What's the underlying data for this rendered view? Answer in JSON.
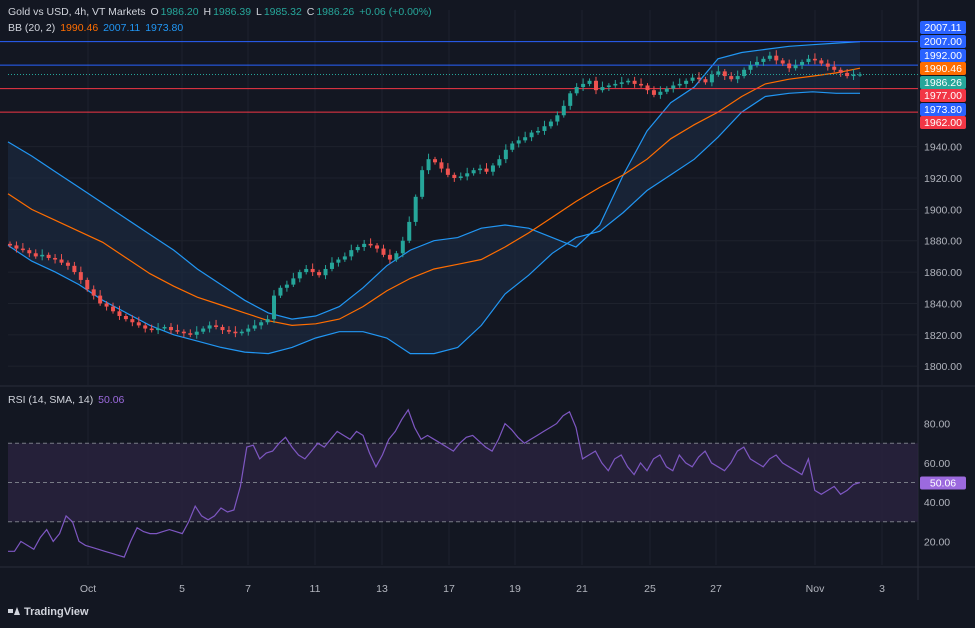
{
  "header": {
    "symbol": "Gold vs USD, 4h, VT Markets",
    "o_label": "O",
    "o": "1986.20",
    "h_label": "H",
    "h": "1986.39",
    "l_label": "L",
    "l": "1985.32",
    "c_label": "C",
    "c": "1986.26",
    "change": "+0.06 (+0.00%)",
    "bb_label": "BB (20, 2)",
    "bb_basis": "1990.46",
    "bb_upper": "2007.11",
    "bb_lower": "1973.80"
  },
  "rsi_header": {
    "label": "RSI (14, SMA, 14)",
    "value": "50.06"
  },
  "branding": "TradingView",
  "colors": {
    "background": "#131722",
    "grid": "#1e222d",
    "up": "#26a69a",
    "down": "#ef5350",
    "bb_band": "#2962ff",
    "bb_basis": "#ff6d00",
    "bb_fill": "#1b2a3e",
    "rsi_line": "#7e57c2",
    "rsi_fill": "#2a2340",
    "price_line_blue": "#2962ff",
    "price_line_red": "#f23645"
  },
  "chart_data": [
    {
      "type": "line",
      "title": "Gold vs USD, 4h, VT Markets",
      "x_ticks": [
        "Oct",
        "5",
        "7",
        "11",
        "13",
        "17",
        "19",
        "21",
        "25",
        "27",
        "Nov",
        "3"
      ],
      "y_ticks": [
        1800.0,
        1820.0,
        1840.0,
        1860.0,
        1880.0,
        1900.0,
        1920.0,
        1940.0
      ],
      "ylim": [
        1788,
        2008
      ],
      "series": [
        {
          "name": "Close (approx.)",
          "values": [
            1877,
            1875,
            1874,
            1872,
            1870,
            1871,
            1869,
            1868,
            1866,
            1864,
            1860,
            1855,
            1849,
            1845,
            1840,
            1838,
            1835,
            1832,
            1830,
            1828,
            1826,
            1824,
            1823,
            1824,
            1825,
            1823,
            1822,
            1821,
            1820,
            1822,
            1824,
            1826,
            1825,
            1823,
            1822,
            1821,
            1822,
            1824,
            1826,
            1828,
            1830,
            1845,
            1850,
            1852,
            1856,
            1860,
            1862,
            1860,
            1858,
            1862,
            1866,
            1868,
            1870,
            1874,
            1876,
            1878,
            1877,
            1875,
            1871,
            1868,
            1872,
            1880,
            1892,
            1908,
            1925,
            1932,
            1930,
            1926,
            1922,
            1920,
            1921,
            1923,
            1925,
            1926,
            1924,
            1928,
            1932,
            1938,
            1942,
            1944,
            1946,
            1949,
            1950,
            1953,
            1956,
            1960,
            1966,
            1974,
            1978,
            1980,
            1982,
            1976,
            1978,
            1979,
            1980,
            1981,
            1982,
            1980,
            1979,
            1976,
            1973,
            1975,
            1977,
            1979,
            1980,
            1982,
            1984,
            1983,
            1981,
            1986,
            1988,
            1985,
            1983,
            1985,
            1989,
            1992,
            1994,
            1996,
            1998,
            1995,
            1993,
            1990,
            1992,
            1994,
            1996,
            1995,
            1993,
            1991,
            1989,
            1987,
            1985,
            1986,
            1986
          ]
        },
        {
          "name": "BB upper (approx.)",
          "values": [
            1943,
            1934,
            1924,
            1914,
            1904,
            1894,
            1884,
            1874,
            1862,
            1852,
            1842,
            1834,
            1830,
            1832,
            1838,
            1850,
            1864,
            1874,
            1880,
            1882,
            1888,
            1890,
            1888,
            1882,
            1876,
            1890,
            1922,
            1950,
            1968,
            1978,
            1996,
            2000,
            2002,
            2004,
            2005,
            2006,
            2007
          ]
        },
        {
          "name": "BB basis (approx.)",
          "values": [
            1910,
            1900,
            1893,
            1886,
            1879,
            1869,
            1859,
            1851,
            1844,
            1839,
            1834,
            1829,
            1826,
            1827,
            1830,
            1838,
            1848,
            1856,
            1862,
            1865,
            1868,
            1876,
            1885,
            1895,
            1905,
            1914,
            1922,
            1932,
            1945,
            1954,
            1962,
            1972,
            1980,
            1983,
            1985,
            1987,
            1990
          ]
        },
        {
          "name": "BB lower (approx.)",
          "values": [
            1877,
            1867,
            1860,
            1852,
            1842,
            1834,
            1826,
            1820,
            1816,
            1812,
            1809,
            1808,
            1812,
            1818,
            1822,
            1822,
            1818,
            1808,
            1808,
            1812,
            1826,
            1846,
            1858,
            1872,
            1882,
            1886,
            1898,
            1912,
            1922,
            1932,
            1946,
            1962,
            1972,
            1974,
            1975,
            1974,
            1974
          ]
        }
      ],
      "price_labels": [
        {
          "value": "2007.11",
          "color": "#2962ff"
        },
        {
          "value": "2007.00",
          "color": "#2962ff"
        },
        {
          "value": "1992.00",
          "color": "#2962ff"
        },
        {
          "value": "1990.46",
          "color": "#ff6d00"
        },
        {
          "value": "1986.26",
          "color": "#26a69a"
        },
        {
          "value": "1977.00",
          "color": "#f23645"
        },
        {
          "value": "1973.80",
          "color": "#2962ff"
        },
        {
          "value": "1962.00",
          "color": "#f23645"
        }
      ],
      "horizontal_levels": [
        {
          "value": 2007.0,
          "color": "#2962ff"
        },
        {
          "value": 1992.0,
          "color": "#2962ff"
        },
        {
          "value": 1977.0,
          "color": "#f23645"
        },
        {
          "value": 1962.0,
          "color": "#f23645"
        }
      ]
    },
    {
      "type": "line",
      "title": "RSI (14, SMA, 14)",
      "y_ticks": [
        20.0,
        40.0,
        60.0,
        80.0
      ],
      "ylim": [
        8,
        92
      ],
      "levels": [
        70,
        50,
        30
      ],
      "series": [
        {
          "name": "RSI (approx.)",
          "values": [
            15,
            15,
            20,
            18,
            16,
            22,
            26,
            20,
            24,
            33,
            30,
            20,
            18,
            17,
            16,
            15,
            14,
            13,
            12,
            20,
            27,
            25,
            24,
            24,
            25,
            26,
            25,
            24,
            30,
            38,
            33,
            31,
            33,
            37,
            35,
            36,
            48,
            68,
            69,
            62,
            65,
            66,
            70,
            73,
            68,
            64,
            62,
            66,
            70,
            68,
            72,
            76,
            74,
            72,
            76,
            74,
            65,
            58,
            64,
            72,
            76,
            82,
            87,
            78,
            72,
            74,
            72,
            70,
            68,
            66,
            70,
            73,
            74,
            71,
            68,
            66,
            72,
            80,
            77,
            73,
            70,
            72,
            74,
            76,
            78,
            80,
            84,
            86,
            78,
            62,
            64,
            66,
            60,
            56,
            62,
            64,
            58,
            54,
            60,
            56,
            62,
            64,
            58,
            56,
            64,
            60,
            58,
            63,
            66,
            60,
            58,
            56,
            60,
            66,
            68,
            62,
            60,
            58,
            62,
            64,
            60,
            58,
            56,
            54,
            62,
            46,
            44,
            46,
            48,
            44,
            46,
            49,
            50
          ]
        }
      ]
    }
  ]
}
